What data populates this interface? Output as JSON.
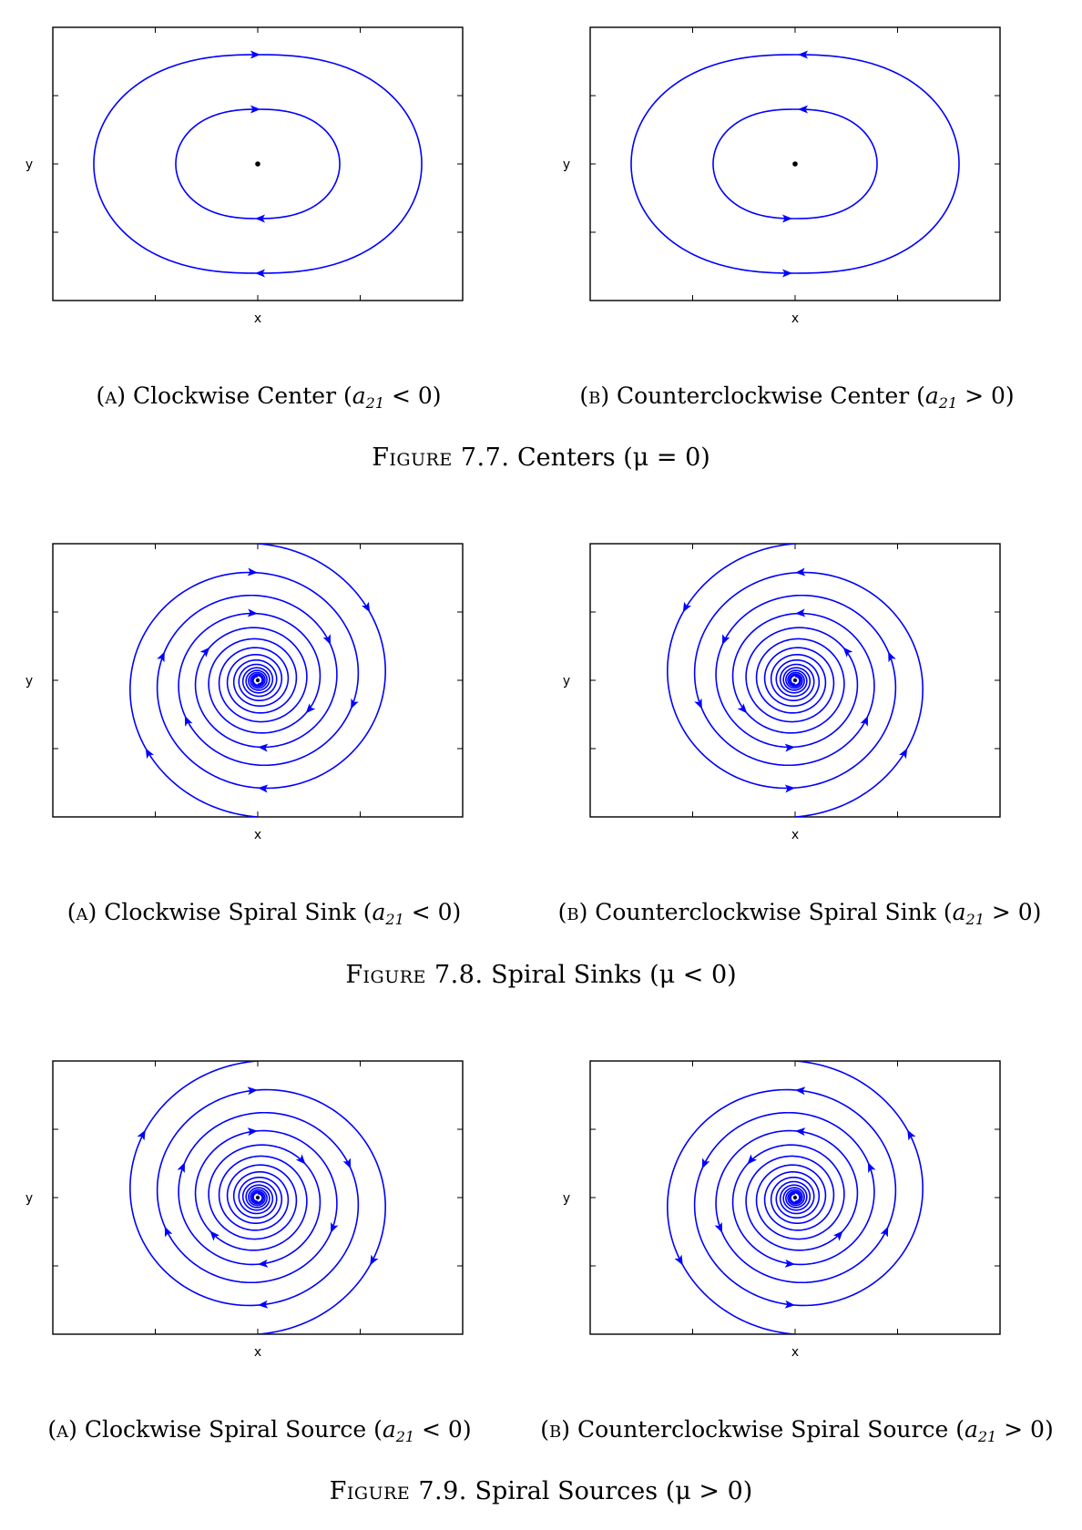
{
  "colors": {
    "trajectory": "#0000ff",
    "frame": "#000000",
    "equilibrium": "#000000"
  },
  "figures": [
    {
      "number": "Figure 7.7.",
      "title": "Centers (",
      "title_math": "μ = 0",
      "panels": [
        {
          "tag": "(a)",
          "text": "Clockwise Center (",
          "math": "a",
          "sub": "21",
          "cond": " < 0)",
          "kind": "center",
          "direction": "clockwise",
          "xlabel": "x",
          "ylabel": "y"
        },
        {
          "tag": "(b)",
          "text": "Counterclockwise Center (",
          "math": "a",
          "sub": "21",
          "cond": " > 0)",
          "kind": "center",
          "direction": "counterclockwise",
          "xlabel": "x",
          "ylabel": "y"
        }
      ]
    },
    {
      "number": "Figure 7.8.",
      "title": "Spiral Sinks (",
      "title_math": "μ < 0",
      "panels": [
        {
          "tag": "(a)",
          "text": "Clockwise Spiral Sink (",
          "math": "a",
          "sub": "21",
          "cond": " < 0)",
          "kind": "sink",
          "direction": "clockwise",
          "xlabel": "x",
          "ylabel": "y"
        },
        {
          "tag": "(b)",
          "text": "Counterclockwise Spiral Sink (",
          "math": "a",
          "sub": "21",
          "cond": " > 0)",
          "kind": "sink",
          "direction": "counterclockwise",
          "xlabel": "x",
          "ylabel": "y"
        }
      ]
    },
    {
      "number": "Figure 7.9.",
      "title": "Spiral Sources (",
      "title_math": "μ > 0",
      "panels": [
        {
          "tag": "(a)",
          "text": "Clockwise Spiral Source (",
          "math": "a",
          "sub": "21",
          "cond": " < 0)",
          "kind": "source",
          "direction": "clockwise",
          "xlabel": "x",
          "ylabel": "y"
        },
        {
          "tag": "(b)",
          "text": "Counterclockwise Spiral Source (",
          "math": "a",
          "sub": "21",
          "cond": " > 0)",
          "kind": "source",
          "direction": "counterclockwise",
          "xlabel": "x",
          "ylabel": "y"
        }
      ]
    }
  ]
}
